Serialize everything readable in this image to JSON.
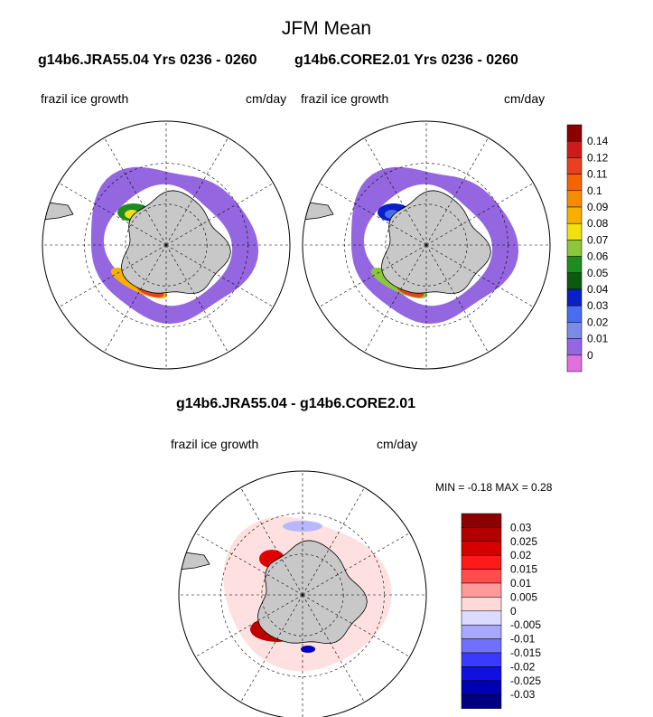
{
  "title": "JFM Mean",
  "subtitle_left": "g14b6.JRA55.04  Yrs 0236 - 0260",
  "subtitle_right": "g14b6.CORE2.01  Yrs 0236 - 0260",
  "diff_title": "g14b6.JRA55.04 - g14b6.CORE2.01",
  "minmax_text": "MIN =  -0.18 MAX =   0.28",
  "chart_data": [
    {
      "type": "heatmap",
      "name": "g14b6.JRA55.04",
      "variable": "frazil ice growth",
      "units": "cm/day",
      "projection": "south-polar-stereographic",
      "colorbar_levels": [
        0,
        0.01,
        0.02,
        0.03,
        0.04,
        0.05,
        0.06,
        0.07,
        0.08,
        0.09,
        0.1,
        0.11,
        0.12,
        0.14
      ],
      "colorbar_colors": [
        "#e16fdc",
        "#9467e0",
        "#7b8ce6",
        "#4a6cf0",
        "#0a1fc8",
        "#0a5a10",
        "#1f8c1f",
        "#8cc63c",
        "#f2e010",
        "#f7b000",
        "#f78c00",
        "#f56400",
        "#e84020",
        "#d01a1a",
        "#8c0000"
      ]
    },
    {
      "type": "heatmap",
      "name": "g14b6.CORE2.01",
      "variable": "frazil ice growth",
      "units": "cm/day",
      "projection": "south-polar-stereographic",
      "colorbar_levels": [
        0,
        0.01,
        0.02,
        0.03,
        0.04,
        0.05,
        0.06,
        0.07,
        0.08,
        0.09,
        0.1,
        0.11,
        0.12,
        0.14
      ],
      "colorbar_colors": [
        "#e16fdc",
        "#9467e0",
        "#7b8ce6",
        "#4a6cf0",
        "#0a1fc8",
        "#0a5a10",
        "#1f8c1f",
        "#8cc63c",
        "#f2e010",
        "#f7b000",
        "#f78c00",
        "#f56400",
        "#e84020",
        "#d01a1a",
        "#8c0000"
      ]
    },
    {
      "type": "heatmap",
      "name": "difference",
      "variable": "frazil ice growth",
      "units": "cm/day",
      "min": -0.18,
      "max": 0.28,
      "colorbar_levels": [
        0.03,
        0.025,
        0.02,
        0.015,
        0.01,
        0.005,
        0,
        -0.005,
        -0.01,
        -0.015,
        -0.02,
        -0.025,
        -0.03
      ],
      "colorbar_colors": [
        "#8c0000",
        "#b20000",
        "#d60000",
        "#ff1a1a",
        "#ff4d4d",
        "#ff9a9a",
        "#ffd8d8",
        "#dcdcff",
        "#a8a8ff",
        "#7070ff",
        "#3a3aff",
        "#1010e0",
        "#0000b0",
        "#000080"
      ]
    }
  ],
  "labels": {
    "variable": "frazil ice growth",
    "units": "cm/day"
  }
}
